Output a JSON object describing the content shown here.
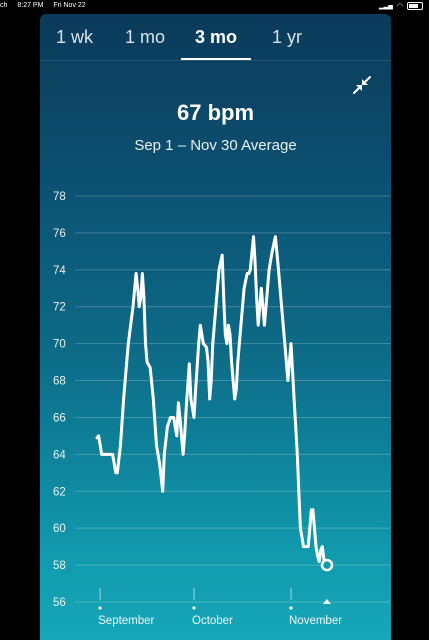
{
  "status_bar": {
    "carrier": "ch",
    "time": "8:27 PM",
    "date": "Fri Nov 22"
  },
  "tabs": [
    {
      "label": "1 wk",
      "active": false
    },
    {
      "label": "1 mo",
      "active": false
    },
    {
      "label": "3 mo",
      "active": true
    },
    {
      "label": "1 yr",
      "active": false
    }
  ],
  "summary": {
    "value": "67 bpm",
    "subtitle": "Sep 1 – Nov 30 Average"
  },
  "icons": {
    "collapse": "collapse-arrows-icon"
  },
  "colors": {
    "accent": "#ffffff",
    "background_top": "#0b3a5a",
    "background_bottom": "#16a7b8"
  },
  "chart_data": {
    "type": "line",
    "title": "",
    "xlabel": "",
    "ylabel": "",
    "ylim": [
      56,
      78
    ],
    "yticks": [
      56,
      58,
      60,
      62,
      64,
      66,
      68,
      70,
      72,
      74,
      76,
      78
    ],
    "x_labels": [
      {
        "label": "September",
        "day": 1
      },
      {
        "label": "October",
        "day": 31
      },
      {
        "label": "November",
        "day": 62
      }
    ],
    "grid": true,
    "series": [
      {
        "values": [
          [
            0,
            64.9
          ],
          [
            0.5,
            65
          ],
          [
            1.5,
            64
          ],
          [
            3,
            64
          ],
          [
            5,
            64
          ],
          [
            6,
            63
          ],
          [
            6.5,
            63
          ],
          [
            7.5,
            64.5
          ],
          [
            8.5,
            67
          ],
          [
            10,
            70
          ],
          [
            11.5,
            72
          ],
          [
            12.5,
            73.8
          ],
          [
            13,
            73
          ],
          [
            13.5,
            72
          ],
          [
            14,
            72.5
          ],
          [
            14.5,
            73.8
          ],
          [
            15,
            72.5
          ],
          [
            15.5,
            70
          ],
          [
            16,
            69
          ],
          [
            17,
            68.7
          ],
          [
            18,
            67
          ],
          [
            19,
            64.5
          ],
          [
            20,
            63.5
          ],
          [
            21,
            62
          ],
          [
            21.5,
            64
          ],
          [
            22.5,
            65.5
          ],
          [
            23.5,
            66
          ],
          [
            24.5,
            66
          ],
          [
            25,
            65.5
          ],
          [
            25.5,
            65
          ],
          [
            26,
            66.8
          ],
          [
            26.5,
            66
          ],
          [
            27.5,
            64
          ],
          [
            28,
            65
          ],
          [
            28.5,
            66.5
          ],
          [
            29.5,
            68.9
          ],
          [
            30,
            67
          ],
          [
            31,
            66
          ],
          [
            31.5,
            67.5
          ],
          [
            32.5,
            70
          ],
          [
            33,
            71
          ],
          [
            33.5,
            70.5
          ],
          [
            34,
            70
          ],
          [
            35,
            69.8
          ],
          [
            35.5,
            69
          ],
          [
            36,
            67
          ],
          [
            36.5,
            68
          ],
          [
            37,
            70
          ],
          [
            38,
            72
          ],
          [
            39,
            74
          ],
          [
            40,
            74.8
          ],
          [
            40.5,
            72.5
          ],
          [
            41,
            70.5
          ],
          [
            41.5,
            70
          ],
          [
            42,
            71
          ],
          [
            42.5,
            70.5
          ],
          [
            43,
            69
          ],
          [
            43.5,
            68
          ],
          [
            44,
            67
          ],
          [
            44.5,
            67.5
          ],
          [
            45,
            69
          ],
          [
            46,
            71
          ],
          [
            47,
            73
          ],
          [
            48,
            73.8
          ],
          [
            48.5,
            73.8
          ],
          [
            49,
            74
          ],
          [
            50,
            75.8
          ],
          [
            50.5,
            74.5
          ],
          [
            51,
            72.5
          ],
          [
            51.5,
            71
          ],
          [
            52,
            72
          ],
          [
            52.5,
            73
          ],
          [
            53,
            72
          ],
          [
            53.5,
            71
          ],
          [
            54,
            72
          ],
          [
            55,
            74
          ],
          [
            56,
            75
          ],
          [
            57,
            75.8
          ],
          [
            58,
            74
          ],
          [
            59,
            72
          ],
          [
            60,
            70
          ],
          [
            61,
            68
          ],
          [
            61.5,
            69
          ],
          [
            62,
            70
          ],
          [
            63,
            67
          ],
          [
            64,
            64
          ],
          [
            64.5,
            62
          ],
          [
            65,
            60
          ],
          [
            65.5,
            59.5
          ],
          [
            66,
            59
          ],
          [
            67,
            59
          ],
          [
            67.5,
            59
          ],
          [
            68,
            60
          ],
          [
            68.5,
            61
          ],
          [
            69,
            61
          ],
          [
            69.5,
            60
          ],
          [
            70,
            59
          ],
          [
            70.5,
            58.5
          ],
          [
            71,
            58.2
          ],
          [
            71.5,
            58.8
          ],
          [
            72,
            59
          ],
          [
            72.5,
            58.3
          ],
          [
            73,
            58
          ],
          [
            73.5,
            58
          ]
        ]
      }
    ],
    "highlight_point": [
      73.5,
      58
    ]
  }
}
